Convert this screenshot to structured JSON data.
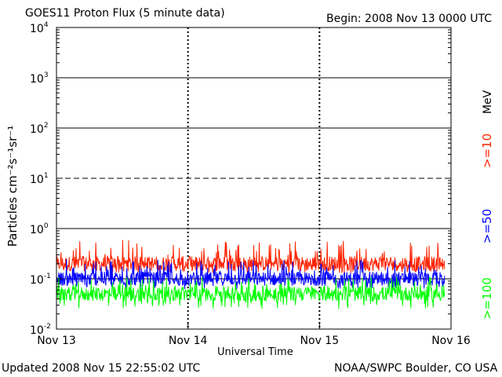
{
  "header": {
    "title": "GOES11 Proton Flux (5 minute data)",
    "begin": "Begin: 2008 Nov 13 0000 UTC"
  },
  "footer": {
    "updated": "Updated 2008 Nov 15 22:55:02 UTC",
    "credit": "NOAA/SWPC Boulder, CO USA"
  },
  "chart_data": {
    "type": "line",
    "title": "GOES11 Proton Flux (5 minute data)",
    "xlabel": "Universal Time",
    "ylabel": "Particles cm⁻²s⁻¹sr⁻¹",
    "yscale": "log",
    "ylim": [
      0.01,
      10000
    ],
    "y_ticks": [
      {
        "base": "10",
        "exp": "-2",
        "value": 0.01
      },
      {
        "base": "10",
        "exp": "-1",
        "value": 0.1
      },
      {
        "base": "10",
        "exp": "0",
        "value": 1
      },
      {
        "base": "10",
        "exp": "1",
        "value": 10
      },
      {
        "base": "10",
        "exp": "2",
        "value": 100
      },
      {
        "base": "10",
        "exp": "3",
        "value": 1000
      },
      {
        "base": "10",
        "exp": "4",
        "value": 10000
      }
    ],
    "x_ticks": [
      "Nov 13",
      "Nov 14",
      "Nov 15",
      "Nov 16"
    ],
    "xlim_days": [
      0,
      3
    ],
    "data_end_day": 2.95,
    "legend_unit": "MeV",
    "series": [
      {
        "name": ">=10",
        "color": "#ff2200",
        "typical": 0.2,
        "range": [
          0.13,
          0.6
        ]
      },
      {
        "name": ">=50",
        "color": "#0000ff",
        "typical": 0.1,
        "range": [
          0.06,
          0.25
        ]
      },
      {
        "name": ">=100",
        "color": "#00ff00",
        "typical": 0.05,
        "range": [
          0.025,
          0.11
        ]
      }
    ]
  }
}
